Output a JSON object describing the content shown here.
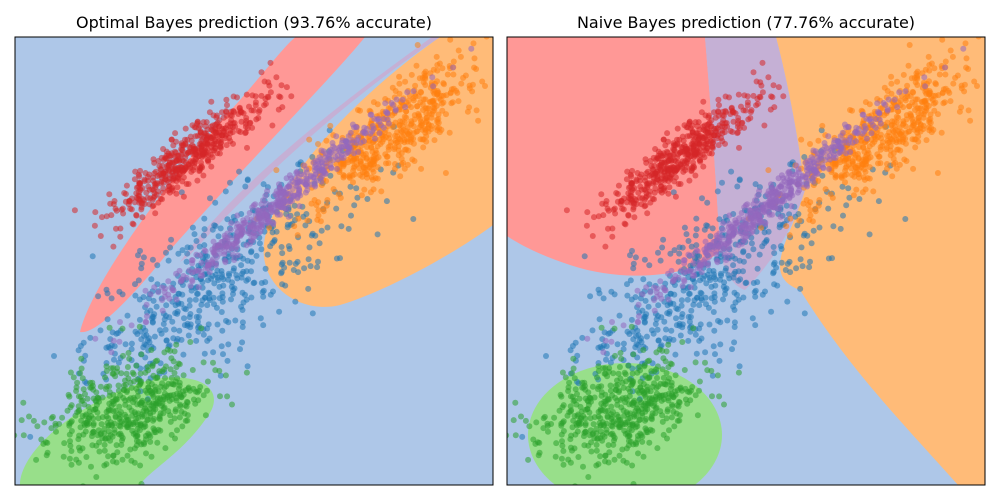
{
  "colors": {
    "background_region": "#aec7e8",
    "red_region": "#ff9896",
    "orange_region": "#ffbb78",
    "purple_region": "#c5b0d5",
    "green_region": "#98df8a",
    "blue_points": "#1f77b4",
    "orange_points": "#ff7f0e",
    "green_points": "#2ca02c",
    "red_points": "#d62728",
    "purple_points": "#9467bd"
  },
  "chart_data": [
    {
      "type": "scatter",
      "title": "Optimal Bayes prediction (93.76% accurate)",
      "xlabel": "",
      "ylabel": "",
      "ticks": "hidden",
      "background": "decision regions",
      "series": [
        {
          "color": "#1f77b4",
          "center": [
            -0.8,
            -0.8
          ],
          "approx_points": 500
        },
        {
          "color": "#ff7f0e",
          "center": [
            1.6,
            1.6
          ],
          "approx_points": 500
        },
        {
          "color": "#2ca02c",
          "center": [
            -2.0,
            -3.0
          ],
          "approx_points": 500
        },
        {
          "color": "#d62728",
          "center": [
            -1.2,
            1.2
          ],
          "approx_points": 500
        },
        {
          "color": "#9467bd",
          "center": [
            0.0,
            0.4
          ],
          "approx_points": 500
        }
      ]
    },
    {
      "type": "scatter",
      "title": "Naive Bayes prediction (77.76% accurate)",
      "xlabel": "",
      "ylabel": "",
      "ticks": "hidden",
      "background": "decision regions",
      "series": [
        {
          "color": "#1f77b4",
          "center": [
            -0.8,
            -0.8
          ],
          "approx_points": 500
        },
        {
          "color": "#ff7f0e",
          "center": [
            1.6,
            1.6
          ],
          "approx_points": 500
        },
        {
          "color": "#2ca02c",
          "center": [
            -2.0,
            -3.0
          ],
          "approx_points": 500
        },
        {
          "color": "#d62728",
          "center": [
            -1.2,
            1.2
          ],
          "approx_points": 500
        },
        {
          "color": "#9467bd",
          "center": [
            0.0,
            0.4
          ],
          "approx_points": 500
        }
      ]
    }
  ]
}
